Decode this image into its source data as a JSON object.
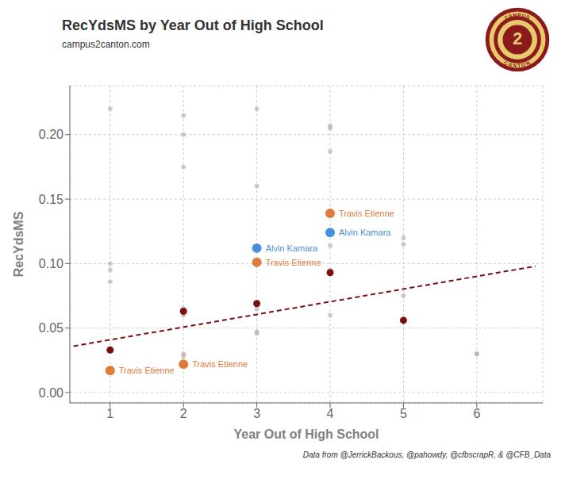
{
  "chart_data": {
    "type": "scatter",
    "title": "RecYdsMS by Year Out of High School",
    "subtitle": "campus2canton.com",
    "xlabel": "Year Out of High School",
    "ylabel": "RecYdsMS",
    "footnote": "Data from @JerrickBackous, @pahowdy, @cfbscrapR, & @CFB_Data",
    "xlim": [
      0.45,
      6.9
    ],
    "ylim": [
      -0.008,
      0.238
    ],
    "xticks": [
      1,
      2,
      3,
      4,
      5,
      6
    ],
    "yticks": [
      {
        "value": 0,
        "label": "0.00"
      },
      0.05,
      {
        "value": 0.1,
        "label": "0.10"
      },
      0.15,
      {
        "value": 0.2,
        "label": "0.20"
      }
    ],
    "grid": true,
    "series": [
      {
        "color": "#b8a8a8",
        "x": [
          1,
          1,
          1,
          1,
          2,
          2,
          2,
          2,
          2,
          2,
          2,
          3,
          3,
          3,
          3,
          3,
          4,
          4,
          4,
          4,
          4,
          4,
          5,
          5,
          5,
          5,
          6,
          6
        ],
        "values": [
          0.086,
          0.095,
          0.1,
          0.22,
          0.028,
          0.03,
          0.06,
          0.065,
          0.175,
          0.2,
          0.215,
          0.047,
          0.065,
          0.16,
          0.22,
          0.046,
          0.114,
          0.187,
          0.205,
          0.207,
          0.095,
          0.06,
          0.075,
          0.115,
          0.055,
          0.12,
          0.03,
          0.03
        ]
      },
      {
        "type": "line",
        "line_style": "dashed",
        "color": "#7a1010",
        "x": [
          0.5,
          6.8
        ],
        "values": [
          0.036,
          0.098
        ]
      },
      {
        "color": "#7a1010",
        "x": [
          1,
          2,
          3,
          4,
          5
        ],
        "values": [
          0.033,
          0.063,
          0.069,
          0.093,
          0.056
        ]
      },
      {
        "color": "#e07b39",
        "x": [
          1,
          2,
          3,
          4
        ],
        "values": [
          0.017,
          0.022,
          0.101,
          0.139
        ],
        "labels": [
          "Travis Etienne",
          "Travis Etienne",
          "Travis Etienne",
          "Travis Etienne"
        ]
      },
      {
        "color": "#4a90d9",
        "x": [
          3,
          4
        ],
        "values": [
          0.112,
          0.124
        ],
        "labels": [
          "Alvin Kamara",
          "Alvin Kamara"
        ]
      }
    ],
    "badge": {
      "top_text": "CAMPUS",
      "bottom_text": "CANTON",
      "number": "2",
      "outer_color": "#8b1a1a",
      "mid_color": "#e8c96e"
    }
  }
}
